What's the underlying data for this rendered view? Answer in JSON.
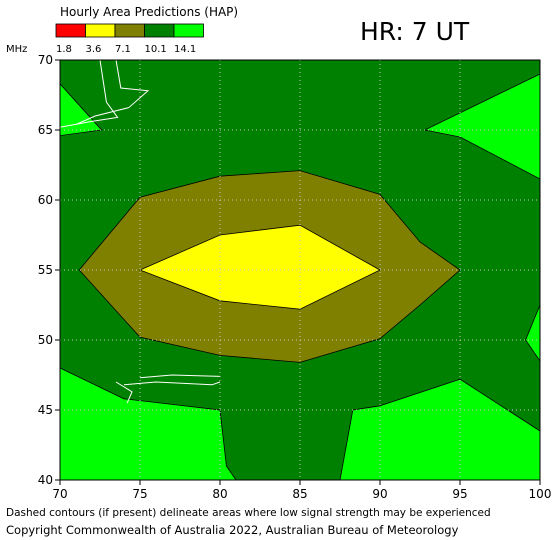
{
  "title": "Hourly Area Predictions (HAP)",
  "hour_label": "HR: 7 UT",
  "legend": {
    "unit": "MHz",
    "levels": [
      "1.8",
      "3.6",
      "7.1",
      "10.1",
      "14.1"
    ],
    "colors": [
      "#ff0000",
      "#ffff00",
      "#808000",
      "#008000",
      "#00ff00"
    ]
  },
  "footnote": "Dashed contours (if present) delineate areas where low signal strength may be experienced",
  "copyright": "Copyright Commonwealth of Australia 2022, Australian Bureau of Meteorology",
  "chart_data": {
    "type": "heatmap",
    "title": "Hourly Area Predictions (HAP)",
    "xlim": [
      70,
      100
    ],
    "ylim": [
      40,
      70
    ],
    "x_ticks": [
      "70",
      "75",
      "80",
      "85",
      "90",
      "95",
      "100"
    ],
    "y_ticks": [
      "40",
      "45",
      "50",
      "55",
      "60",
      "65",
      "70"
    ],
    "grid": true,
    "background_band": "10.1",
    "regions": [
      {
        "band": "14.1",
        "color": "#00ff00",
        "polygon": [
          [
            70,
            48
          ],
          [
            74,
            45.8
          ],
          [
            80,
            45
          ],
          [
            80.4,
            41
          ],
          [
            81,
            40
          ],
          [
            70,
            40
          ]
        ]
      },
      {
        "band": "14.1",
        "color": "#00ff00",
        "polygon": [
          [
            87.5,
            40
          ],
          [
            88.3,
            45
          ],
          [
            90,
            45.3
          ],
          [
            95,
            47.2
          ],
          [
            100,
            43.5
          ],
          [
            100,
            40
          ]
        ]
      },
      {
        "band": "14.1",
        "color": "#00ff00",
        "polygon": [
          [
            70,
            68.3
          ],
          [
            72.6,
            65
          ],
          [
            70,
            64.6
          ]
        ]
      },
      {
        "band": "14.1",
        "color": "#00ff00",
        "polygon": [
          [
            92.8,
            65
          ],
          [
            100,
            69
          ],
          [
            100,
            61.5
          ],
          [
            95,
            64.5
          ]
        ]
      },
      {
        "band": "14.1",
        "color": "#00ff00",
        "polygon": [
          [
            100,
            52.5
          ],
          [
            99.1,
            50
          ],
          [
            100,
            48.5
          ]
        ]
      },
      {
        "band": "7.1",
        "color": "#808000",
        "polygon": [
          [
            71.2,
            55
          ],
          [
            75,
            60.2
          ],
          [
            80,
            61.7
          ],
          [
            85,
            62.1
          ],
          [
            90,
            60.4
          ],
          [
            92.5,
            57
          ],
          [
            95,
            55
          ],
          [
            92.5,
            52.5
          ],
          [
            90,
            50.1
          ],
          [
            85,
            48.4
          ],
          [
            80,
            48.9
          ],
          [
            75,
            50.2
          ]
        ]
      },
      {
        "band": "3.6",
        "color": "#ffff00",
        "polygon": [
          [
            75,
            55
          ],
          [
            80,
            57.5
          ],
          [
            85,
            58.2
          ],
          [
            90,
            55
          ],
          [
            85,
            52.2
          ],
          [
            80,
            52.8
          ]
        ]
      }
    ],
    "low_signal_contours": [
      [
        [
          72.5,
          70
        ],
        [
          72.9,
          67
        ],
        [
          73.6,
          65.9
        ],
        [
          71.9,
          65.6
        ],
        [
          70,
          65.2
        ]
      ],
      [
        [
          73.5,
          70
        ],
        [
          73.8,
          68
        ],
        [
          75.5,
          67.8
        ],
        [
          74.3,
          66.6
        ],
        [
          72.2,
          66
        ],
        [
          71,
          65.4
        ]
      ],
      [
        [
          74,
          46.8
        ],
        [
          76,
          47
        ],
        [
          79.5,
          46.8
        ],
        [
          80,
          47
        ]
      ],
      [
        [
          73.5,
          47
        ],
        [
          74.5,
          46.3
        ],
        [
          74.2,
          45.5
        ]
      ],
      [
        [
          75,
          47.3
        ],
        [
          77,
          47.5
        ],
        [
          80,
          47.4
        ]
      ]
    ]
  }
}
